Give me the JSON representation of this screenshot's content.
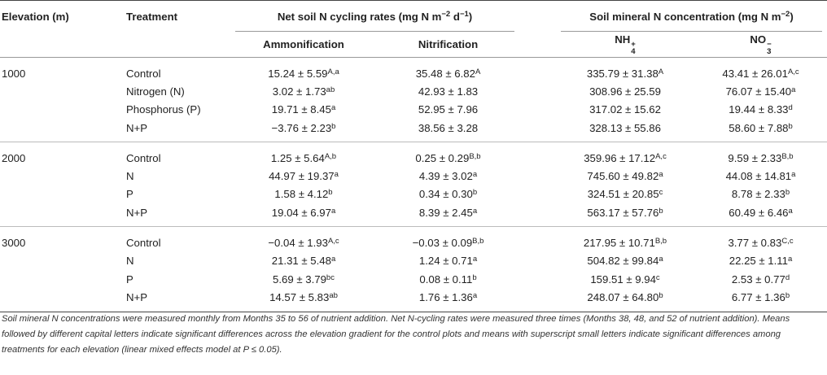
{
  "headers": {
    "elevation": "Elevation (m)",
    "treatment": "Treatment",
    "net_group": "Net soil N cycling rates (mg N m",
    "net_group_exp": "−2",
    "net_group_tail": " d",
    "net_group_exp2": "−1",
    "net_group_close": ")",
    "min_group": "Soil mineral N concentration (mg N m",
    "min_group_exp": "−2",
    "min_group_close": ")",
    "ammonification": "Ammonification",
    "nitrification": "Nitrification",
    "nh4_base": "NH",
    "nh4_sup": "+",
    "nh4_sub": "4",
    "no3_base": "NO",
    "no3_sup": "−",
    "no3_sub": "3"
  },
  "rows": [
    {
      "elev": "1000",
      "trt": "Control",
      "amm": "15.24 ± 5.59",
      "amm_s": "A,a",
      "nit": "35.48 ± 6.82",
      "nit_s": "A",
      "nh4": "335.79 ± 31.38",
      "nh4_s": "A",
      "no3": "43.41 ± 26.01",
      "no3_s": "A,c"
    },
    {
      "elev": "",
      "trt": "Nitrogen (N)",
      "amm": "3.02 ± 1.73",
      "amm_s": "ab",
      "nit": "42.93 ± 1.83",
      "nit_s": "",
      "nh4": "308.96 ± 25.59",
      "nh4_s": "",
      "no3": "76.07 ± 15.40",
      "no3_s": "a"
    },
    {
      "elev": "",
      "trt": "Phosphorus (P)",
      "amm": "19.71 ± 8.45",
      "amm_s": "a",
      "nit": "52.95 ± 7.96",
      "nit_s": "",
      "nh4": "317.02 ± 15.62",
      "nh4_s": "",
      "no3": "19.44 ± 8.33",
      "no3_s": "d"
    },
    {
      "elev": "",
      "trt": "N+P",
      "amm": "−3.76 ± 2.23",
      "amm_s": "b",
      "nit": "38.56 ± 3.28",
      "nit_s": "",
      "nh4": "328.13 ± 55.86",
      "nh4_s": "",
      "no3": "58.60 ± 7.88",
      "no3_s": "b"
    },
    {
      "elev": "2000",
      "trt": "Control",
      "amm": "1.25 ± 5.64",
      "amm_s": "A,b",
      "nit": "0.25 ± 0.29",
      "nit_s": "B,b",
      "nh4": "359.96 ± 17.12",
      "nh4_s": "A,c",
      "no3": "9.59 ± 2.33",
      "no3_s": "B,b"
    },
    {
      "elev": "",
      "trt": "N",
      "amm": "44.97 ± 19.37",
      "amm_s": "a",
      "nit": "4.39 ± 3.02",
      "nit_s": "a",
      "nh4": "745.60 ± 49.82",
      "nh4_s": "a",
      "no3": "44.08 ± 14.81",
      "no3_s": "a"
    },
    {
      "elev": "",
      "trt": "P",
      "amm": "1.58 ± 4.12",
      "amm_s": "b",
      "nit": "0.34 ± 0.30",
      "nit_s": "b",
      "nh4": "324.51 ± 20.85",
      "nh4_s": "c",
      "no3": "8.78 ± 2.33",
      "no3_s": "b"
    },
    {
      "elev": "",
      "trt": "N+P",
      "amm": "19.04 ± 6.97",
      "amm_s": "a",
      "nit": "8.39 ± 2.45",
      "nit_s": "a",
      "nh4": "563.17 ± 57.76",
      "nh4_s": "b",
      "no3": "60.49 ± 6.46",
      "no3_s": "a"
    },
    {
      "elev": "3000",
      "trt": "Control",
      "amm": "−0.04 ± 1.93",
      "amm_s": "A,c",
      "nit": "−0.03 ± 0.09",
      "nit_s": "B,b",
      "nh4": "217.95 ± 10.71",
      "nh4_s": "B,b",
      "no3": "3.77 ± 0.83",
      "no3_s": "C,c"
    },
    {
      "elev": "",
      "trt": "N",
      "amm": "21.31 ± 5.48",
      "amm_s": "a",
      "nit": "1.24 ± 0.71",
      "nit_s": "a",
      "nh4": "504.82 ± 99.84",
      "nh4_s": "a",
      "no3": "22.25 ± 1.11",
      "no3_s": "a"
    },
    {
      "elev": "",
      "trt": "P",
      "amm": "5.69 ± 3.79",
      "amm_s": "bc",
      "nit": "0.08 ± 0.11",
      "nit_s": "b",
      "nh4": "159.51 ± 9.94",
      "nh4_s": "c",
      "no3": "2.53 ± 0.77",
      "no3_s": "d"
    },
    {
      "elev": "",
      "trt": "N+P",
      "amm": "14.57 ± 5.83",
      "amm_s": "ab",
      "nit": "1.76 ± 1.36",
      "nit_s": "a",
      "nh4": "248.07 ± 64.80",
      "nh4_s": "b",
      "no3": "6.77 ± 1.36",
      "no3_s": "b"
    }
  ],
  "footnote": "Soil mineral N concentrations were measured monthly from Months 35 to 56 of nutrient addition. Net N-cycling rates were measured three times (Months 38, 48, and 52 of nutrient addition). Means followed by different capital letters indicate significant differences across the elevation gradient for the control plots and means with superscript small letters indicate significant differences among treatments for each elevation (linear mixed effects model at P ≤ 0.05)."
}
